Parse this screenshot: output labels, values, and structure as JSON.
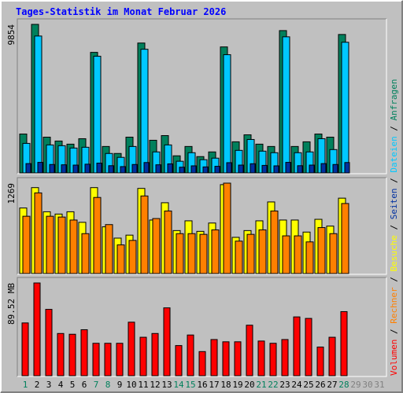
{
  "title": "Tages-Statistik im Monat Februar 2026",
  "legend_separator": "/",
  "chart_data": [
    {
      "type": "bar",
      "ylim": [
        0,
        9854
      ],
      "yticks": [
        9854
      ],
      "series": [
        {
          "name": "Anfragen",
          "color": "#00805c",
          "values": [
            2580,
            9854,
            2373,
            2115,
            1909,
            2270,
            7997,
            1754,
            1290,
            2373,
            8616,
            2167,
            2476,
            1135,
            1754,
            1083,
            1393,
            8358,
            2064,
            2528,
            1909,
            1754,
            9441,
            1754,
            2064,
            2580,
            2373,
            9183,
            null,
            null,
            null
          ]
        },
        {
          "name": "Dateien",
          "color": "#00c8ff",
          "values": [
            1960,
            9080,
            1857,
            1806,
            1651,
            1703,
            7739,
            1290,
            1032,
            1754,
            8203,
            1393,
            1857,
            774,
            1341,
            877,
            980,
            7842,
            1496,
            2218,
            1445,
            1341,
            9028,
            1341,
            1393,
            2270,
            1548,
            8667,
            null,
            null,
            null
          ]
        },
        {
          "name": "Seiten",
          "color": "#0030a0",
          "values": [
            620,
            700,
            560,
            540,
            520,
            580,
            650,
            480,
            420,
            560,
            690,
            540,
            600,
            380,
            470,
            400,
            440,
            680,
            520,
            610,
            500,
            470,
            700,
            480,
            520,
            620,
            560,
            690,
            null,
            null,
            null
          ]
        }
      ]
    },
    {
      "type": "bar",
      "ylim": [
        0,
        1269
      ],
      "yticks": [
        1269
      ],
      "series": [
        {
          "name": "Besuche",
          "color": "#ffff00",
          "values": [
            920,
            1206,
            867,
            835,
            867,
            719,
            1206,
            656,
            497,
            539,
            1195,
            751,
            994,
            603,
            740,
            592,
            709,
            1248,
            508,
            603,
            740,
            1005,
            751,
            751,
            582,
            761,
            666,
            1058,
            null,
            null,
            null
          ]
        },
        {
          "name": "Rechner",
          "color": "#ff8000",
          "values": [
            804,
            1132,
            804,
            793,
            751,
            560,
            1068,
            687,
            402,
            465,
            1089,
            772,
            878,
            560,
            560,
            550,
            613,
            1269,
            455,
            550,
            613,
            878,
            529,
            529,
            444,
            645,
            560,
            983,
            null,
            null,
            null
          ]
        }
      ]
    },
    {
      "type": "bar",
      "ylim": [
        0,
        89.52
      ],
      "yticks": [
        {
          "value": 89.52,
          "label": "89.52 MB"
        }
      ],
      "categories": [
        "1",
        "2",
        "3",
        "4",
        "5",
        "6",
        "7",
        "8",
        "9",
        "10",
        "11",
        "12",
        "13",
        "14",
        "15",
        "16",
        "17",
        "18",
        "19",
        "20",
        "21",
        "22",
        "23",
        "24",
        "25",
        "26",
        "27",
        "28",
        "29",
        "30",
        "31"
      ],
      "category_colors": [
        "#00805c",
        "#000000",
        "#000000",
        "#000000",
        "#000000",
        "#000000",
        "#00805c",
        "#00805c",
        "#000000",
        "#000000",
        "#000000",
        "#000000",
        "#000000",
        "#00805c",
        "#00805c",
        "#000000",
        "#000000",
        "#000000",
        "#000000",
        "#000000",
        "#00805c",
        "#00805c",
        "#000000",
        "#000000",
        "#000000",
        "#000000",
        "#000000",
        "#00805c",
        "#808080",
        "#808080",
        "#808080"
      ],
      "series": [
        {
          "name": "Volumen",
          "color": "#ff0000",
          "values": [
            50.95,
            89.52,
            64.05,
            40.76,
            40.03,
            44.4,
            31.3,
            31.3,
            31.3,
            51.67,
            37.12,
            40.76,
            65.5,
            29.11,
            39.3,
            23.29,
            34.93,
            32.75,
            32.75,
            48.76,
            33.48,
            31.3,
            34.93,
            56.77,
            55.31,
            27.66,
            37.12,
            61.86,
            null,
            null,
            null
          ]
        }
      ]
    }
  ]
}
